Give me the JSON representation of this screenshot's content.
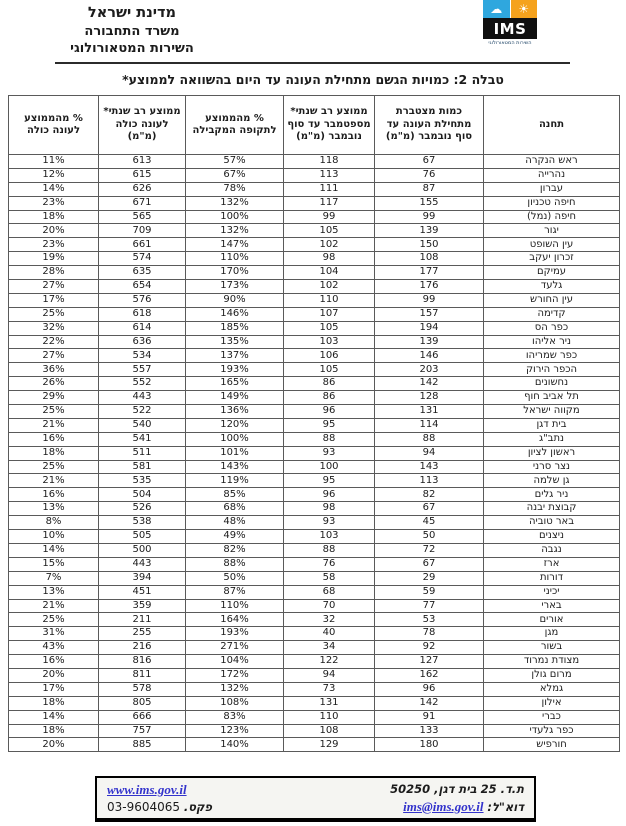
{
  "header": {
    "org_lines": [
      "מדינת ישראל",
      "משרד התחבורה",
      "השירות המטאורולוגי"
    ],
    "logo": {
      "text": "IMS",
      "caption": "השירות המטאורולוגי",
      "cloud_icon": "☁",
      "sun_icon": "☀",
      "blue": "#2fa7de",
      "orange": "#f5a21d"
    }
  },
  "title": "טבלה 2: כמויות הגשם מתחילת העונה עד היום בהשוואה לממוצע*",
  "table": {
    "columns": [
      "תחנה",
      "כמות מצטברת מתחילת העונה עד סוף נובמבר (מ\"מ)",
      "ממוצע רב שנתי* מספטמבר עד סוף נובמבר (מ\"מ)",
      "% מהממוצע לתקופה המקבילה",
      "ממוצע רב שנתי* לעונה כולה (מ\"מ)",
      "% מהממוצע לעונה כולה"
    ],
    "rows": [
      [
        "ראש הנקרה",
        "67",
        "118",
        "57%",
        "613",
        "11%"
      ],
      [
        "נהרייה",
        "76",
        "113",
        "67%",
        "615",
        "12%"
      ],
      [
        "עברון",
        "87",
        "111",
        "78%",
        "626",
        "14%"
      ],
      [
        "חיפה טכניון",
        "155",
        "117",
        "132%",
        "671",
        "23%"
      ],
      [
        "חיפה (נמל)",
        "99",
        "99",
        "100%",
        "565",
        "18%"
      ],
      [
        "יגור",
        "139",
        "105",
        "132%",
        "709",
        "20%"
      ],
      [
        "עין השופט",
        "150",
        "102",
        "147%",
        "661",
        "23%"
      ],
      [
        "זכרון יעקב",
        "108",
        "98",
        "110%",
        "574",
        "19%"
      ],
      [
        "עמיקם",
        "177",
        "104",
        "170%",
        "635",
        "28%"
      ],
      [
        "גלעד",
        "176",
        "102",
        "173%",
        "654",
        "27%"
      ],
      [
        "עין החורש",
        "99",
        "110",
        "90%",
        "576",
        "17%"
      ],
      [
        "קדימה",
        "157",
        "107",
        "146%",
        "618",
        "25%"
      ],
      [
        "כפר הס",
        "194",
        "105",
        "185%",
        "614",
        "32%"
      ],
      [
        "ניר אליהו",
        "139",
        "103",
        "135%",
        "636",
        "22%"
      ],
      [
        "כפר שמריהו",
        "146",
        "106",
        "137%",
        "534",
        "27%"
      ],
      [
        "הכפר הירוק",
        "203",
        "105",
        "193%",
        "557",
        "36%"
      ],
      [
        "נחשונים",
        "142",
        "86",
        "165%",
        "552",
        "26%"
      ],
      [
        "תל אביב חוף",
        "128",
        "86",
        "149%",
        "443",
        "29%"
      ],
      [
        "מקווה ישראל",
        "131",
        "96",
        "136%",
        "522",
        "25%"
      ],
      [
        "בית דגן",
        "114",
        "95",
        "120%",
        "540",
        "21%"
      ],
      [
        "נתב\"ג",
        "88",
        "88",
        "100%",
        "541",
        "16%"
      ],
      [
        "ראשון לציון",
        "94",
        "93",
        "101%",
        "511",
        "18%"
      ],
      [
        "נצר סרני",
        "143",
        "100",
        "143%",
        "581",
        "25%"
      ],
      [
        "גן שלמה",
        "113",
        "95",
        "119%",
        "535",
        "21%"
      ],
      [
        "ניר גלים",
        "82",
        "96",
        "85%",
        "504",
        "16%"
      ],
      [
        "קבוצת יבנה",
        "67",
        "98",
        "68%",
        "526",
        "13%"
      ],
      [
        "באר טוביה",
        "45",
        "93",
        "48%",
        "538",
        "8%"
      ],
      [
        "ניצנים",
        "50",
        "103",
        "49%",
        "505",
        "10%"
      ],
      [
        "נגבה",
        "72",
        "88",
        "82%",
        "500",
        "14%"
      ],
      [
        "ארז",
        "67",
        "76",
        "88%",
        "443",
        "15%"
      ],
      [
        "דורות",
        "29",
        "58",
        "50%",
        "394",
        "7%"
      ],
      [
        "יכיני",
        "59",
        "68",
        "87%",
        "451",
        "13%"
      ],
      [
        "בארי",
        "77",
        "70",
        "110%",
        "359",
        "21%"
      ],
      [
        "אורים",
        "53",
        "32",
        "164%",
        "211",
        "25%"
      ],
      [
        "מגן",
        "78",
        "40",
        "193%",
        "255",
        "31%"
      ],
      [
        "בשור",
        "92",
        "34",
        "271%",
        "216",
        "43%"
      ],
      [
        "מצודת נמרוד",
        "127",
        "122",
        "104%",
        "816",
        "16%"
      ],
      [
        "מרום גולן",
        "162",
        "94",
        "172%",
        "811",
        "20%"
      ],
      [
        "גמלא",
        "96",
        "73",
        "132%",
        "578",
        "17%"
      ],
      [
        "אילון",
        "142",
        "131",
        "108%",
        "805",
        "18%"
      ],
      [
        "כברי",
        "91",
        "110",
        "83%",
        "666",
        "14%"
      ],
      [
        "כפר גלעדי",
        "133",
        "108",
        "123%",
        "757",
        "18%"
      ],
      [
        "חורפיש",
        "180",
        "129",
        "140%",
        "885",
        "20%"
      ]
    ]
  },
  "footer": {
    "address": "ת.ד. 25 בית דגן, 50250",
    "email_label": "דוא\"ל:",
    "email": "ims@ims.gov.il",
    "website": "www.ims.gov.il",
    "fax_label": "פקס.",
    "fax": "03-9604065"
  }
}
